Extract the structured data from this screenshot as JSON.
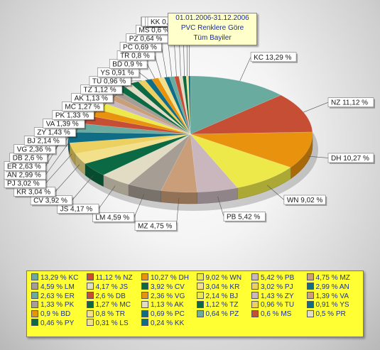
{
  "title_lines": [
    "01.01.2006-31.12.2006",
    "PVC Renklere Göre",
    "Tüm Bayiler"
  ],
  "chart_data": {
    "type": "pie",
    "title": "01.01.2006-31.12.2006 PVC Renklere Göre Tüm Bayiler",
    "slices": [
      {
        "code": "KC",
        "value": 13.29,
        "label": "13,29 %",
        "color": "#6aaba0",
        "callout": "KC 13,29 %"
      },
      {
        "code": "NZ",
        "value": 11.12,
        "label": "11,12 %",
        "color": "#c64e35",
        "callout": "NZ 11,12 %"
      },
      {
        "code": "DH",
        "value": 10.27,
        "label": "10,27 %",
        "color": "#e8920e",
        "callout": "DH 10,27 %"
      },
      {
        "code": "WN",
        "value": 9.02,
        "label": "9,02 %",
        "color": "#ede94a",
        "callout": "WN 9,02 %"
      },
      {
        "code": "PB",
        "value": 5.42,
        "label": "5,42 %",
        "color": "#c9b7bd",
        "callout": "PB 5,42 %"
      },
      {
        "code": "MZ",
        "value": 4.75,
        "label": "4,75 %",
        "color": "#c99e78",
        "callout": "MZ 4,75 %"
      },
      {
        "code": "LM",
        "value": 4.59,
        "label": "4,59 %",
        "color": "#a69e94",
        "callout": "LM 4,59 %"
      },
      {
        "code": "JS",
        "value": 4.17,
        "label": "4,17 %",
        "color": "#e3dcc5",
        "callout": "JS 4,17 %"
      },
      {
        "code": "CV",
        "value": 3.92,
        "label": "3,92 %",
        "color": "#0b6a43",
        "callout": "CV 3,92 %"
      },
      {
        "code": "KR",
        "value": 3.04,
        "label": "3,04 %",
        "color": "#f2e08a",
        "callout": "KR 3,04 %"
      },
      {
        "code": "PJ",
        "value": 3.02,
        "label": "3,02 %",
        "color": "#ecd060",
        "callout": "PJ 3,02 %"
      },
      {
        "code": "AN",
        "value": 2.99,
        "label": "2,99 %",
        "color": "#0f6e86",
        "callout": "AN 2,99 %"
      },
      {
        "code": "ER",
        "value": 2.63,
        "label": "2,63 %",
        "color": "#6aaba0",
        "callout": "ER 2,63 %"
      },
      {
        "code": "DB",
        "value": 2.6,
        "label": "2,6 %",
        "color": "#c64e35",
        "callout": "DB 2,6 %"
      },
      {
        "code": "VG",
        "value": 2.36,
        "label": "2,36 %",
        "color": "#e8920e",
        "callout": "VG 2,36 %"
      },
      {
        "code": "BJ",
        "value": 2.14,
        "label": "2,14 %",
        "color": "#ede94a",
        "callout": "BJ 2,14 %"
      },
      {
        "code": "ZY",
        "value": 1.43,
        "label": "1,43 %",
        "color": "#c9b7bd",
        "callout": "ZY 1,43 %"
      },
      {
        "code": "VA",
        "value": 1.39,
        "label": "1,39 %",
        "color": "#c99e78",
        "callout": "VA 1,39 %"
      },
      {
        "code": "PK",
        "value": 1.33,
        "label": "1,33 %",
        "color": "#a69e94",
        "callout": "PK 1,33 %"
      },
      {
        "code": "MC",
        "value": 1.27,
        "label": "1,27 %",
        "color": "#0b6a43",
        "callout": "MC 1,27 %"
      },
      {
        "code": "AK",
        "value": 1.13,
        "label": "1,13 %",
        "color": "#e3dcc5",
        "callout": "AK 1,13 %"
      },
      {
        "code": "TZ",
        "value": 1.12,
        "label": "1,12 %",
        "color": "#0b6a43",
        "callout": "TZ 1,12 %"
      },
      {
        "code": "TU",
        "value": 0.96,
        "label": "0,96 %",
        "color": "#ecd060",
        "callout": "TU 0,96 %"
      },
      {
        "code": "YS",
        "value": 0.91,
        "label": "0,91 %",
        "color": "#0f6e86",
        "callout": "YS 0,91 %"
      },
      {
        "code": "BD",
        "value": 0.9,
        "label": "0,9 %",
        "color": "#e8920e",
        "callout": "BD 0,9 %"
      },
      {
        "code": "TR",
        "value": 0.8,
        "label": "0,8 %",
        "color": "#f2e08a",
        "callout": "TR 0,8 %"
      },
      {
        "code": "PC",
        "value": 0.69,
        "label": "0,69 %",
        "color": "#0f6e86",
        "callout": "PC 0,69 %"
      },
      {
        "code": "PZ",
        "value": 0.64,
        "label": "0,64 %",
        "color": "#6aaba0",
        "callout": "PZ 0,64 %"
      },
      {
        "code": "MS",
        "value": 0.6,
        "label": "0,6 %",
        "color": "#c64e35",
        "callout": "MS 0,6 %"
      },
      {
        "code": "PR",
        "value": 0.5,
        "label": "0,5 %",
        "color": "#e3dcc5",
        "callout": "PR 0,5 %"
      },
      {
        "code": "PY",
        "value": 0.46,
        "label": "0,46 %",
        "color": "#0b6a43",
        "callout": "PY 0,46 %"
      },
      {
        "code": "LS",
        "value": 0.31,
        "label": "0,31 %",
        "color": "#f2e08a",
        "callout": "LS 0,31 %"
      },
      {
        "code": "KK",
        "value": 0.24,
        "label": "0,24 %",
        "color": "#0f6e86",
        "callout": "KK 0,24 %"
      }
    ]
  }
}
